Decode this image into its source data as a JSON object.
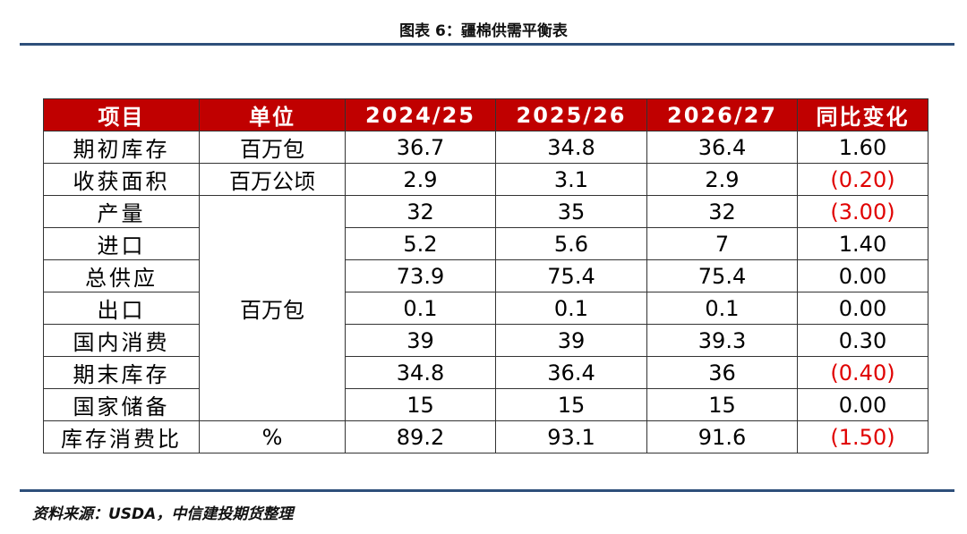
{
  "header": {
    "title": "图表 6：疆棉供需平衡表"
  },
  "table": {
    "columns": [
      "项目",
      "单位",
      "2024/25",
      "2025/26",
      "2026/27",
      "同比变化"
    ],
    "rows": [
      [
        "期初库存",
        "百万包",
        "36.7",
        "34.8",
        "36.4",
        "1.60"
      ],
      [
        "收获面积",
        "百万公顷",
        "2.9",
        "3.1",
        "2.9",
        "(0.20)"
      ],
      [
        "产量",
        "百万包",
        "32",
        "35",
        "32",
        "(3.00)"
      ],
      [
        "进口",
        null,
        "5.2",
        "5.6",
        "7",
        "1.40"
      ],
      [
        "总供应",
        null,
        "73.9",
        "75.4",
        "75.4",
        "0.00"
      ],
      [
        "出口",
        null,
        "0.1",
        "0.1",
        "0.1",
        "0.00"
      ],
      [
        "国内消费",
        null,
        "39",
        "39",
        "39.3",
        "0.30"
      ],
      [
        "期末库存",
        null,
        "34.8",
        "36.4",
        "36",
        "(0.40)"
      ],
      [
        "国家储备",
        null,
        "15",
        "15",
        "15",
        "0.00"
      ],
      [
        "库存消费比",
        "%",
        "89.2",
        "93.1",
        "91.6",
        "(1.50)"
      ]
    ]
  },
  "footer": {
    "source": "资料来源：USDA，中信建投期货整理"
  }
}
